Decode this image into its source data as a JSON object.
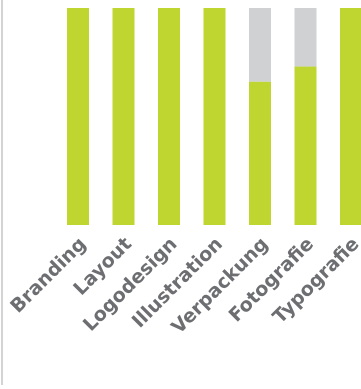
{
  "chart_data": {
    "type": "bar",
    "stacked": true,
    "categories": [
      "Branding",
      "Layout",
      "Logodesign",
      "Illustration",
      "Verpackung",
      "Fotografie",
      "Typografie"
    ],
    "series": [
      {
        "values": [
          100,
          100,
          100,
          100,
          66,
          73,
          100
        ]
      },
      {
        "values": [
          0,
          0,
          0,
          0,
          34,
          27,
          0
        ]
      }
    ],
    "ylim": [
      0,
      100
    ],
    "grid": false,
    "legend": "none"
  },
  "colors": {
    "filled": "#bfd630",
    "remainder": "#cfd1d3",
    "label": "#6d6e71",
    "axis_line": "#d3d3d3"
  }
}
